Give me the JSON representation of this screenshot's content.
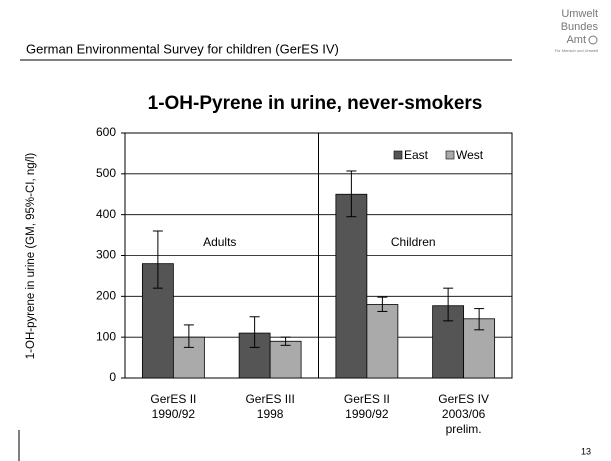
{
  "header": {
    "title": "German Environmental Survey for children (GerES IV)",
    "logo": [
      "Umwelt",
      "Bundes",
      "Amt"
    ],
    "logo_tagline": "Für Mensch und Umwelt",
    "page_number": "13"
  },
  "chart_data": {
    "type": "bar",
    "title": "1-OH-Pyrene in urine, never-smokers",
    "y_label": "1-OH-pyrene in urine (GM, 95%-CI, ng/l)",
    "categories": [
      [
        "GerES II",
        "1990/92"
      ],
      [
        "GerES III",
        "1998"
      ],
      [
        "GerES II",
        "1990/92"
      ],
      [
        "GerES IV",
        "2003/06",
        "prelim."
      ]
    ],
    "series": [
      {
        "name": "East",
        "color": "#555555",
        "values": [
          280,
          110,
          450,
          177
        ],
        "ci_low": [
          220,
          75,
          395,
          140
        ],
        "ci_high": [
          360,
          150,
          507,
          220
        ]
      },
      {
        "name": "West",
        "color": "#aaaaaa",
        "values": [
          100,
          90,
          180,
          145
        ],
        "ci_low": [
          75,
          80,
          163,
          118
        ],
        "ci_high": [
          130,
          100,
          198,
          170
        ]
      }
    ],
    "annotations": [
      "Adults",
      "Children"
    ],
    "ylim": [
      0,
      600
    ],
    "yticks": [
      0,
      100,
      200,
      300,
      400,
      500,
      600
    ],
    "grid": true,
    "legend": "upper right"
  }
}
